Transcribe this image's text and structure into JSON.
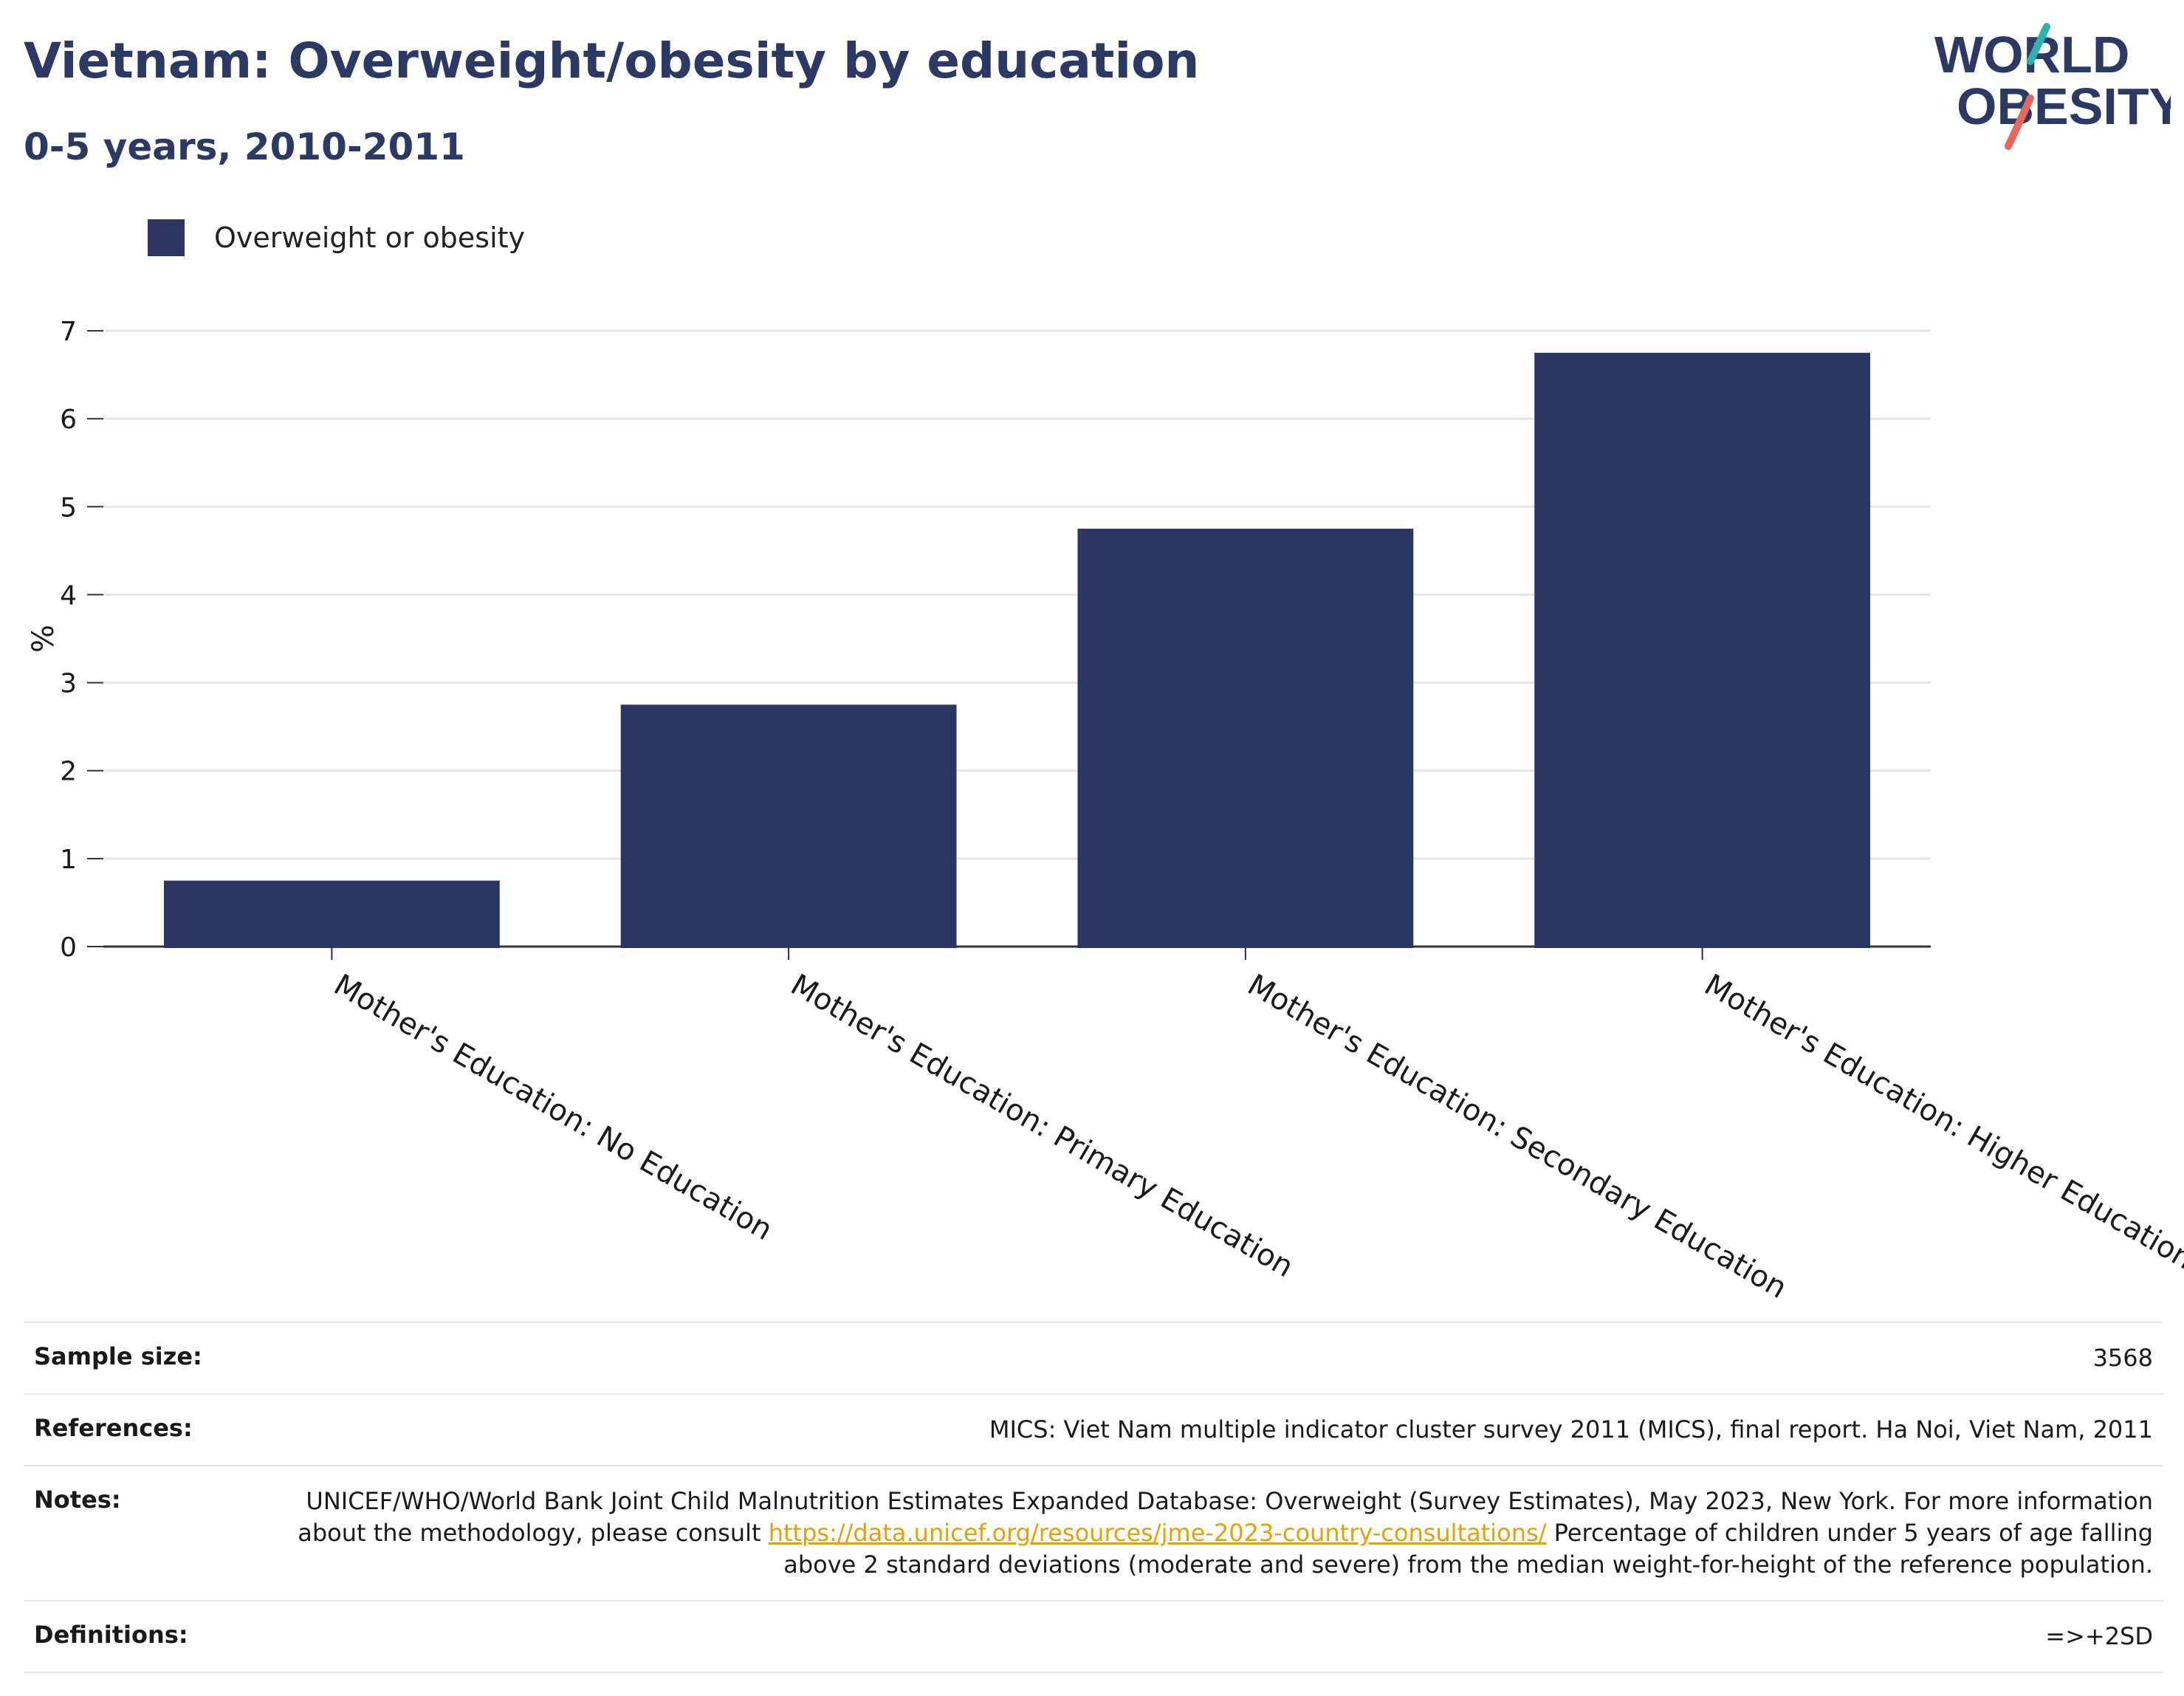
{
  "header": {
    "title": "Vietnam: Overweight/obesity by education",
    "subtitle": "0-5 years, 2010-2011"
  },
  "logo": {
    "line1": "WORLD",
    "line2": "OBESITY",
    "text_color": "#2b3a64",
    "accent_teal": "#2bb3b1",
    "accent_coral": "#e8665a"
  },
  "legend": {
    "label": "Overweight or obesity",
    "color": "#2b3762"
  },
  "chart_data": {
    "type": "bar",
    "categories": [
      "Mother's Education: No Education",
      "Mother's Education: Primary Education",
      "Mother's Education: Secondary Education",
      "Mother's Education: Higher Education"
    ],
    "series": [
      {
        "name": "Overweight or obesity",
        "values": [
          0.75,
          2.75,
          4.75,
          6.75
        ]
      }
    ],
    "title": "Vietnam: Overweight/obesity by education",
    "subtitle": "0-5 years, 2010-2011",
    "xlabel": "",
    "ylabel": "%",
    "ylim": [
      0,
      7
    ],
    "yticks": [
      0,
      1,
      2,
      3,
      4,
      5,
      6,
      7
    ],
    "grid": true,
    "legend_position": "top-left",
    "bar_color": "#2b3762"
  },
  "meta": {
    "sample_size": {
      "label": "Sample size:",
      "value": "3568"
    },
    "references": {
      "label": "References:",
      "value": "MICS: Viet Nam multiple indicator cluster survey 2011 (MICS), final report. Ha Noi, Viet Nam, 2011"
    },
    "notes": {
      "label": "Notes:",
      "text_before": "UNICEF/WHO/World Bank Joint Child Malnutrition Estimates Expanded Database: Overweight (Survey Estimates), May 2023, New York. For more information about the methodology, please consult ",
      "link": "https://data.unicef.org/resources/jme-2023-country-consultations/",
      "text_after": " Percentage of children under 5 years of age falling above 2 standard deviations (moderate and severe) from the median weight-for-height of the reference population."
    },
    "definitions": {
      "label": "Definitions:",
      "value": "=>+2SD"
    }
  }
}
